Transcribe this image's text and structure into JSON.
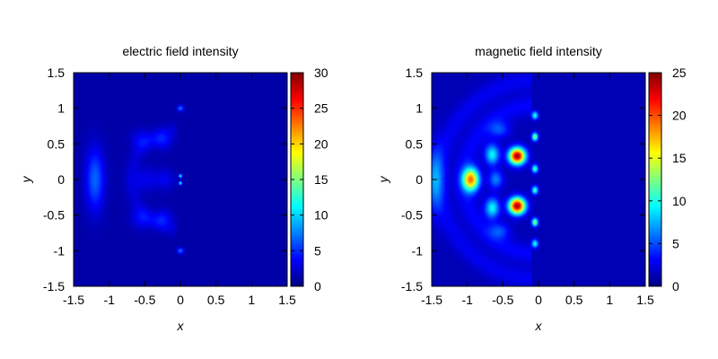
{
  "chart_data": [
    {
      "type": "heatmap",
      "title": "electric field intensity",
      "xlabel": "x",
      "ylabel": "y",
      "xlim": [
        -1.5,
        1.5
      ],
      "ylim": [
        -1.5,
        1.5
      ],
      "xticks": [
        -1.5,
        -1,
        -0.5,
        0,
        0.5,
        1,
        1.5
      ],
      "xtick_labels": [
        "-1.5",
        "-1",
        "-0.5",
        "0",
        "0.5",
        "1",
        "1.5"
      ],
      "yticks": [
        -1.5,
        -1,
        -0.5,
        0,
        0.5,
        1,
        1.5
      ],
      "ytick_labels": [
        "-1.5",
        "-1",
        "-0.5",
        "0",
        "0.5",
        "1",
        "1.5"
      ],
      "colorbar": {
        "colormap": "jet",
        "range": [
          0,
          30
        ],
        "ticks": [
          0,
          5,
          10,
          15,
          20,
          25,
          30
        ],
        "tick_labels": [
          "0",
          "5",
          "10",
          "15",
          "20",
          "25",
          "30"
        ]
      },
      "background_value": 1.2,
      "features": [
        {
          "kind": "spot",
          "x": -1.2,
          "y": 0,
          "sx": 0.09,
          "sy": 0.3,
          "value": 5.5
        },
        {
          "kind": "spot",
          "x": -0.55,
          "y": 0.55,
          "sx": 0.1,
          "sy": 0.1,
          "value": 2.5
        },
        {
          "kind": "spot",
          "x": -0.55,
          "y": -0.55,
          "sx": 0.1,
          "sy": 0.1,
          "value": 2.5
        },
        {
          "kind": "spot",
          "x": -0.25,
          "y": 0.55,
          "sx": 0.09,
          "sy": 0.09,
          "value": 3
        },
        {
          "kind": "spot",
          "x": -0.25,
          "y": -0.55,
          "sx": 0.09,
          "sy": 0.09,
          "value": 3
        },
        {
          "kind": "spot",
          "x": -0.5,
          "y": 0,
          "sx": 0.12,
          "sy": 0.12,
          "value": 2
        },
        {
          "kind": "spot",
          "x": -0.22,
          "y": 0,
          "sx": 0.1,
          "sy": 0.1,
          "value": 2
        },
        {
          "kind": "spot",
          "x": 0,
          "y": 0.05,
          "sx": 0.015,
          "sy": 0.015,
          "value": 13
        },
        {
          "kind": "spot",
          "x": 0,
          "y": -0.05,
          "sx": 0.015,
          "sy": 0.015,
          "value": 13
        },
        {
          "kind": "spot",
          "x": 0,
          "y": 1.0,
          "sx": 0.03,
          "sy": 0.03,
          "value": 6
        },
        {
          "kind": "spot",
          "x": 0,
          "y": -1.0,
          "sx": 0.03,
          "sy": 0.03,
          "value": 6
        },
        {
          "kind": "arc",
          "x": 0,
          "y": 0,
          "r": 0.7,
          "width": 0.07,
          "xmax": -0.05,
          "value": 1.2
        }
      ]
    },
    {
      "type": "heatmap",
      "title": "magnetic field intensity",
      "xlabel": "x",
      "ylabel": "y",
      "xlim": [
        -1.5,
        1.5
      ],
      "ylim": [
        -1.5,
        1.5
      ],
      "xticks": [
        -1.5,
        -1,
        -0.5,
        0,
        0.5,
        1,
        1.5
      ],
      "xtick_labels": [
        "-1.5",
        "-1",
        "-0.5",
        "0",
        "0.5",
        "1",
        "1.5"
      ],
      "yticks": [
        -1.5,
        -1,
        -0.5,
        0,
        0.5,
        1,
        1.5
      ],
      "ytick_labels": [
        "-1.5",
        "-1",
        "-0.5",
        "0",
        "0.5",
        "1",
        "1.5"
      ],
      "colorbar": {
        "colormap": "jet",
        "range": [
          0,
          25
        ],
        "ticks": [
          0,
          5,
          10,
          15,
          20,
          25
        ],
        "tick_labels": [
          "0",
          "5",
          "10",
          "15",
          "20",
          "25"
        ]
      },
      "background_value": 1.3,
      "features": [
        {
          "kind": "spot",
          "x": -0.3,
          "y": 0.33,
          "sx": 0.08,
          "sy": 0.08,
          "value": 23
        },
        {
          "kind": "spot",
          "x": -0.3,
          "y": -0.37,
          "sx": 0.08,
          "sy": 0.08,
          "value": 23
        },
        {
          "kind": "spot",
          "x": -0.95,
          "y": 0,
          "sx": 0.08,
          "sy": 0.11,
          "value": 17
        },
        {
          "kind": "spot",
          "x": -0.65,
          "y": 0.35,
          "sx": 0.07,
          "sy": 0.1,
          "value": 8
        },
        {
          "kind": "spot",
          "x": -0.65,
          "y": -0.4,
          "sx": 0.07,
          "sy": 0.1,
          "value": 8
        },
        {
          "kind": "spot",
          "x": -0.6,
          "y": 0,
          "sx": 0.07,
          "sy": 0.09,
          "value": 5
        },
        {
          "kind": "spot",
          "x": -0.55,
          "y": 0.7,
          "sx": 0.1,
          "sy": 0.08,
          "value": 3.5
        },
        {
          "kind": "spot",
          "x": -0.55,
          "y": -0.72,
          "sx": 0.1,
          "sy": 0.08,
          "value": 3.5
        },
        {
          "kind": "spot",
          "x": -1.45,
          "y": 0,
          "sx": 0.08,
          "sy": 0.3,
          "value": 5
        },
        {
          "kind": "spot",
          "x": -0.05,
          "y": 0.9,
          "sx": 0.03,
          "sy": 0.04,
          "value": 9
        },
        {
          "kind": "spot",
          "x": -0.05,
          "y": 0.6,
          "sx": 0.03,
          "sy": 0.04,
          "value": 12
        },
        {
          "kind": "spot",
          "x": -0.05,
          "y": 0.15,
          "sx": 0.03,
          "sy": 0.04,
          "value": 10
        },
        {
          "kind": "spot",
          "x": -0.05,
          "y": -0.15,
          "sx": 0.03,
          "sy": 0.04,
          "value": 10
        },
        {
          "kind": "spot",
          "x": -0.05,
          "y": -0.6,
          "sx": 0.03,
          "sy": 0.04,
          "value": 12
        },
        {
          "kind": "spot",
          "x": -0.05,
          "y": -0.9,
          "sx": 0.03,
          "sy": 0.04,
          "value": 9
        },
        {
          "kind": "arc",
          "x": 0,
          "y": 0,
          "r": 1.05,
          "width": 0.1,
          "xmax": -0.1,
          "value": 1.8
        },
        {
          "kind": "arc",
          "x": 0,
          "y": 0,
          "r": 1.4,
          "width": 0.1,
          "xmax": -0.1,
          "value": 1.5
        }
      ]
    }
  ]
}
